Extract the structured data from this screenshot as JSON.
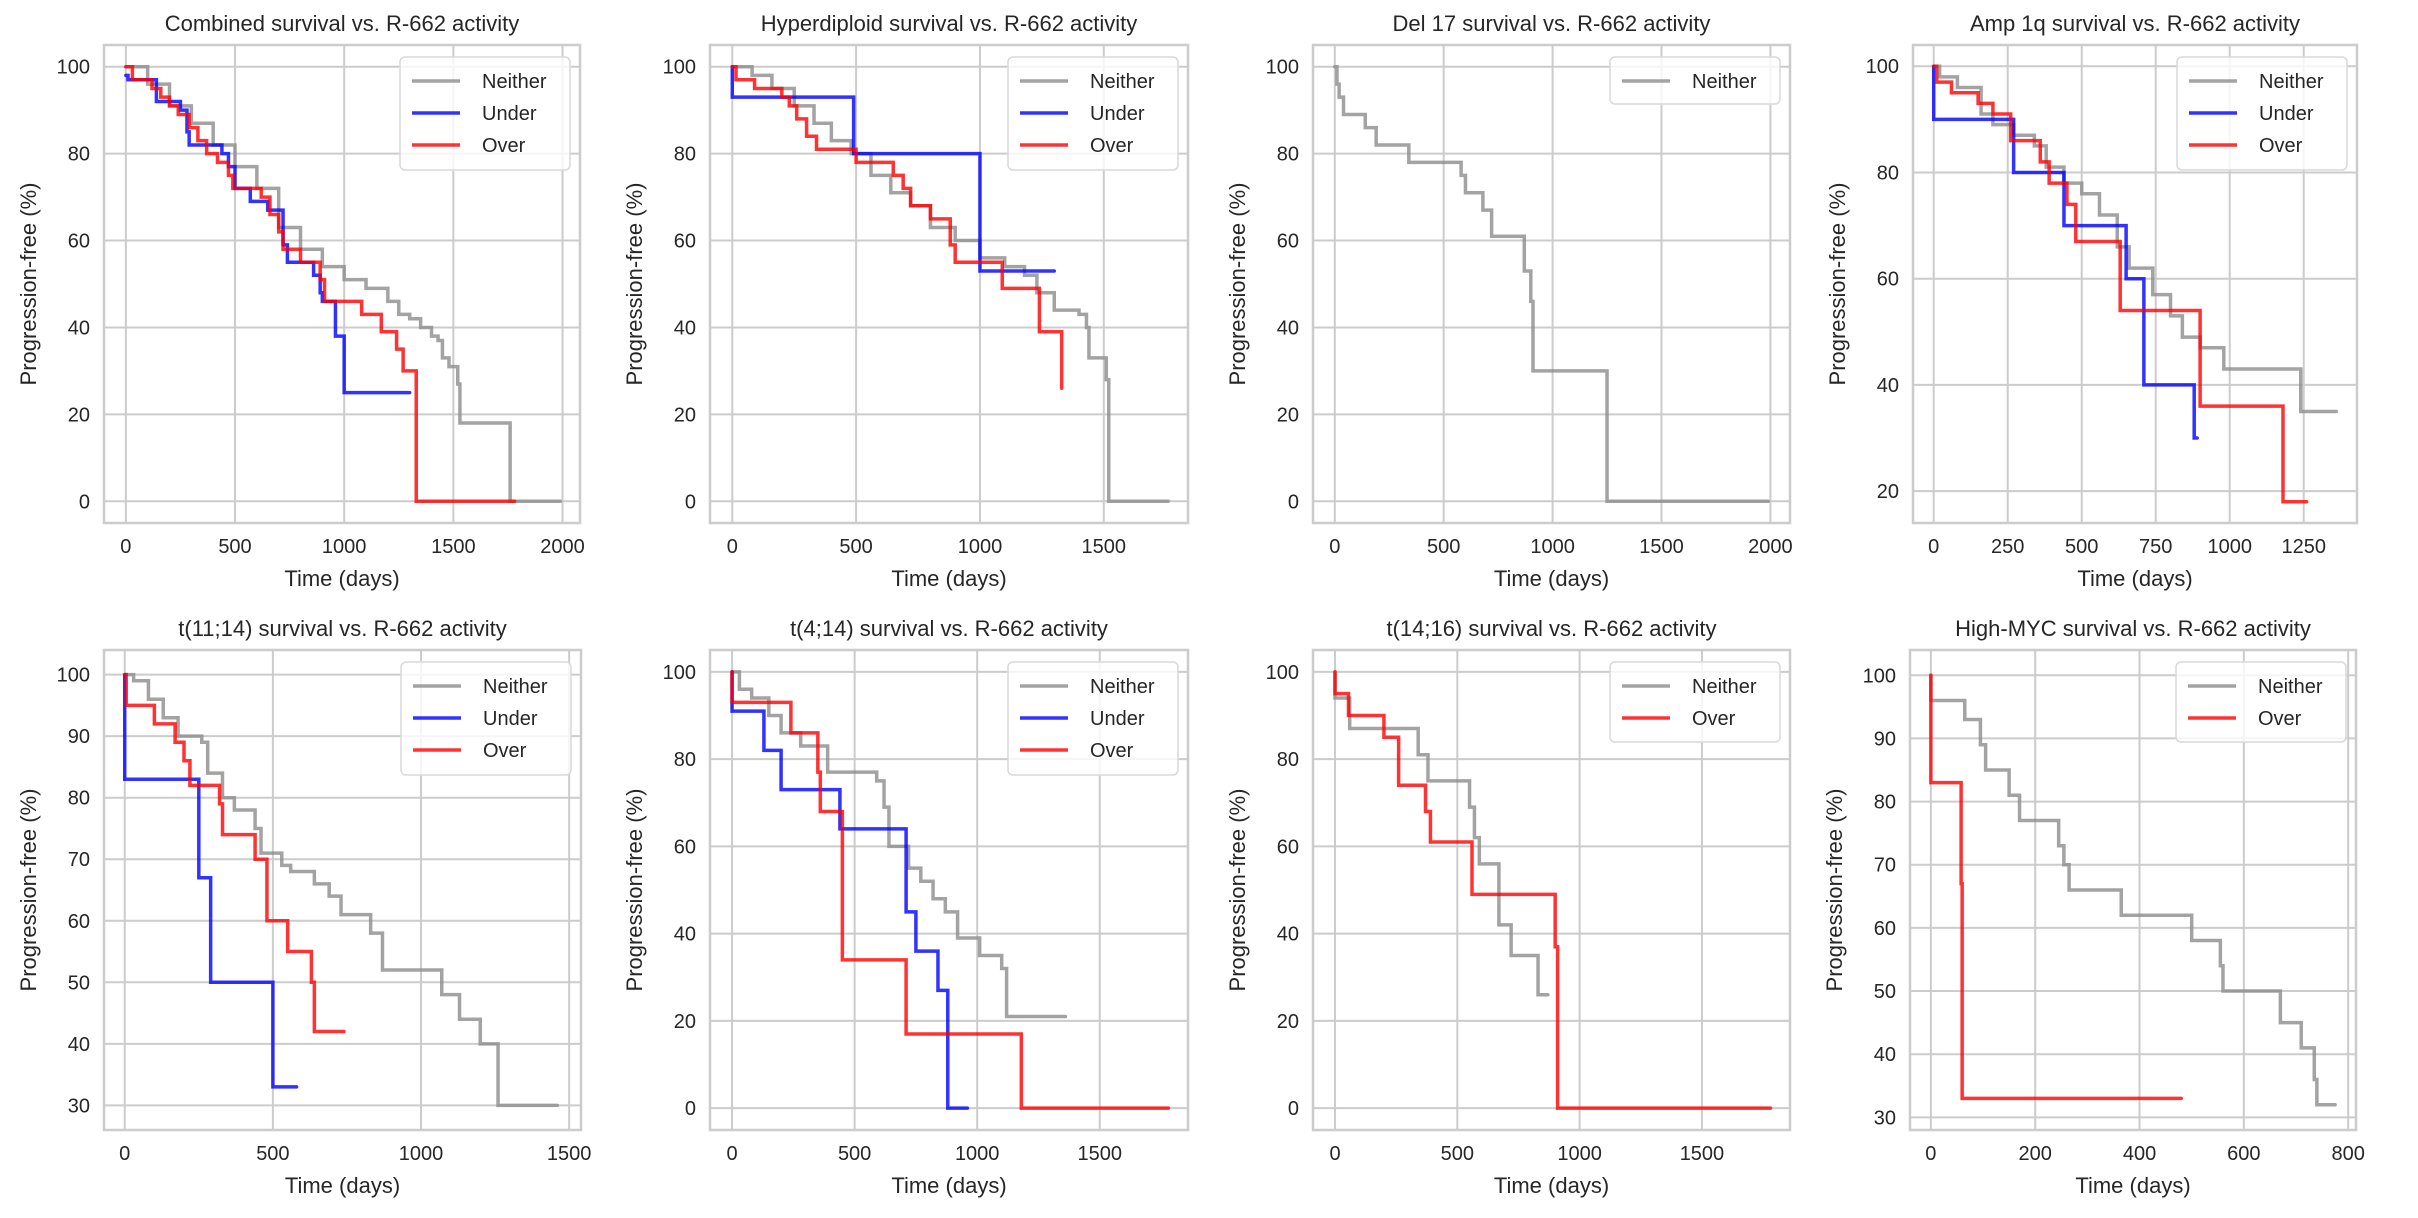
{
  "figure": {
    "ylabel": "Progression-free (%)",
    "xlabel": "Time (days)"
  },
  "series_colors": {
    "Neither": "#8c8c8c",
    "Under": "#0000ff",
    "Over": "#ff0000"
  },
  "chart_data": [
    {
      "type": "line",
      "title": "Combined survival vs. R-662 activity",
      "xlabel": "Time (days)",
      "ylabel": "Progression-free (%)",
      "xlim": [
        -100,
        2080
      ],
      "ylim": [
        -5,
        105
      ],
      "xticks": [
        0,
        500,
        1000,
        1500,
        2000
      ],
      "yticks": [
        0,
        20,
        40,
        60,
        80,
        100
      ],
      "grid": true,
      "legend": "top-right",
      "series": [
        {
          "name": "Neither",
          "x": [
            0,
            100,
            200,
            300,
            400,
            500,
            600,
            700,
            800,
            900,
            1000,
            1100,
            1200,
            1250,
            1300,
            1350,
            1400,
            1430,
            1450,
            1480,
            1510,
            1520,
            1530,
            1760,
            1760,
            1990
          ],
          "y": [
            100,
            96,
            91,
            87,
            82,
            77,
            72,
            63,
            58,
            54,
            51,
            49,
            46,
            43,
            42,
            40,
            38,
            37,
            33,
            31,
            31,
            27,
            18,
            18,
            0,
            0
          ]
        },
        {
          "name": "Under",
          "x": [
            0,
            10,
            130,
            140,
            250,
            280,
            290,
            440,
            470,
            500,
            570,
            650,
            720,
            740,
            800,
            860,
            890,
            900,
            960,
            1000,
            1300
          ],
          "y": [
            98,
            97,
            97,
            92,
            90,
            85,
            82,
            80,
            77,
            72,
            69,
            67,
            59,
            55,
            55,
            52,
            48,
            46,
            38,
            25,
            25
          ]
        },
        {
          "name": "Over",
          "x": [
            0,
            30,
            120,
            160,
            200,
            240,
            290,
            330,
            370,
            420,
            470,
            490,
            560,
            620,
            660,
            700,
            720,
            800,
            860,
            890,
            910,
            1080,
            1170,
            1240,
            1270,
            1330,
            1330,
            1780
          ],
          "y": [
            100,
            97,
            95,
            93,
            91,
            89,
            86,
            83,
            80,
            78,
            75,
            72,
            72,
            70,
            66,
            62,
            58,
            55,
            55,
            51,
            46,
            43,
            39,
            35,
            30,
            30,
            0,
            0
          ]
        }
      ]
    },
    {
      "type": "line",
      "title": "Hyperdiploid survival vs. R-662 activity",
      "xlabel": "Time (days)",
      "ylabel": "Progression-free (%)",
      "xlim": [
        -90,
        1840
      ],
      "ylim": [
        -5,
        105
      ],
      "xticks": [
        0,
        500,
        1000,
        1500
      ],
      "yticks": [
        0,
        20,
        40,
        60,
        80,
        100
      ],
      "grid": true,
      "legend": "top-right",
      "series": [
        {
          "name": "Neither",
          "x": [
            0,
            80,
            160,
            250,
            330,
            400,
            480,
            560,
            640,
            720,
            800,
            900,
            1000,
            1100,
            1180,
            1230,
            1300,
            1400,
            1430,
            1440,
            1500,
            1510,
            1520,
            1760
          ],
          "y": [
            100,
            98,
            95,
            91,
            87,
            83,
            80,
            75,
            71,
            68,
            63,
            60,
            56,
            54,
            52,
            48,
            44,
            43,
            40,
            33,
            33,
            28,
            0,
            0
          ]
        },
        {
          "name": "Under",
          "x": [
            0,
            0,
            490,
            490,
            1000,
            1000,
            1300
          ],
          "y": [
            100,
            93,
            93,
            80,
            80,
            53,
            53
          ]
        },
        {
          "name": "Over",
          "x": [
            0,
            15,
            90,
            200,
            230,
            260,
            300,
            340,
            500,
            650,
            690,
            720,
            800,
            880,
            900,
            1090,
            1240,
            1330
          ],
          "y": [
            100,
            97,
            95,
            93,
            91,
            88,
            84,
            81,
            78,
            75,
            72,
            68,
            65,
            59,
            55,
            49,
            39,
            26
          ]
        }
      ]
    },
    {
      "type": "line",
      "title": "Del 17 survival vs. R-662 activity",
      "xlabel": "Time (days)",
      "ylabel": "Progression-free (%)",
      "xlim": [
        -100,
        2090
      ],
      "ylim": [
        -5,
        105
      ],
      "xticks": [
        0,
        500,
        1000,
        1500,
        2000
      ],
      "yticks": [
        0,
        20,
        40,
        60,
        80,
        100
      ],
      "grid": true,
      "legend": "top-right",
      "series": [
        {
          "name": "Neither",
          "x": [
            0,
            10,
            20,
            40,
            140,
            190,
            340,
            580,
            600,
            680,
            720,
            870,
            900,
            910,
            1250,
            1990
          ],
          "y": [
            100,
            96,
            93,
            89,
            86,
            82,
            78,
            75,
            71,
            67,
            61,
            53,
            46,
            30,
            0,
            0
          ]
        }
      ]
    },
    {
      "type": "line",
      "title": "Amp 1q survival vs. R-662 activity",
      "xlabel": "Time (days)",
      "ylabel": "Progression-free (%)",
      "xlim": [
        -70,
        1430
      ],
      "ylim": [
        14,
        104
      ],
      "xticks": [
        0,
        250,
        500,
        750,
        1000,
        1250
      ],
      "yticks": [
        20,
        40,
        60,
        80,
        100
      ],
      "grid": true,
      "legend": "top-right",
      "series": [
        {
          "name": "Neither",
          "x": [
            0,
            20,
            80,
            160,
            200,
            270,
            340,
            380,
            440,
            500,
            560,
            620,
            660,
            700,
            740,
            800,
            840,
            900,
            980,
            1240,
            1360
          ],
          "y": [
            100,
            98,
            96,
            91,
            89,
            87,
            85,
            81,
            78,
            76,
            72,
            66,
            62,
            62,
            57,
            53,
            49,
            47,
            43,
            35,
            35
          ]
        },
        {
          "name": "Under",
          "x": [
            0,
            0,
            270,
            270,
            440,
            440,
            650,
            650,
            710,
            710,
            880,
            880,
            890
          ],
          "y": [
            100,
            90,
            90,
            80,
            80,
            70,
            70,
            60,
            60,
            40,
            40,
            30,
            30
          ]
        },
        {
          "name": "Over",
          "x": [
            0,
            10,
            60,
            150,
            200,
            260,
            360,
            390,
            450,
            480,
            630,
            900,
            1180,
            1260
          ],
          "y": [
            100,
            97,
            95,
            93,
            91,
            86,
            82,
            78,
            74,
            67,
            54,
            36,
            18,
            18
          ]
        }
      ]
    },
    {
      "type": "line",
      "title": "t(11;14) survival vs. R-662 activity",
      "xlabel": "Time (days)",
      "ylabel": "Progression-free (%)",
      "xlim": [
        -70,
        1540
      ],
      "ylim": [
        26,
        104
      ],
      "xticks": [
        0,
        500,
        1000,
        1500
      ],
      "yticks": [
        30,
        40,
        50,
        60,
        70,
        80,
        90,
        100
      ],
      "grid": true,
      "legend": "top-right",
      "series": [
        {
          "name": "Neither",
          "x": [
            0,
            30,
            80,
            130,
            180,
            260,
            280,
            330,
            370,
            440,
            460,
            530,
            560,
            640,
            690,
            730,
            830,
            870,
            1070,
            1130,
            1200,
            1260,
            1460
          ],
          "y": [
            100,
            99,
            96,
            93,
            90,
            89,
            84,
            80,
            78,
            75,
            71,
            69,
            68,
            66,
            64,
            61,
            58,
            52,
            48,
            44,
            40,
            30,
            30
          ]
        },
        {
          "name": "Under",
          "x": [
            0,
            0,
            250,
            250,
            290,
            290,
            500,
            500,
            580
          ],
          "y": [
            100,
            83,
            83,
            67,
            67,
            50,
            50,
            33,
            33
          ]
        },
        {
          "name": "Over",
          "x": [
            0,
            5,
            100,
            170,
            200,
            220,
            320,
            330,
            440,
            480,
            550,
            630,
            640,
            740
          ],
          "y": [
            100,
            95,
            92,
            89,
            86,
            82,
            79,
            74,
            70,
            60,
            55,
            50,
            42,
            42
          ]
        }
      ]
    },
    {
      "type": "line",
      "title": "t(4;14) survival vs. R-662 activity",
      "xlabel": "Time (days)",
      "ylabel": "Progression-free (%)",
      "xlim": [
        -90,
        1860
      ],
      "ylim": [
        -5,
        105
      ],
      "xticks": [
        0,
        500,
        1000,
        1500
      ],
      "yticks": [
        0,
        20,
        40,
        60,
        80,
        100
      ],
      "grid": true,
      "legend": "top-right",
      "series": [
        {
          "name": "Neither",
          "x": [
            0,
            30,
            80,
            150,
            200,
            280,
            390,
            590,
            620,
            640,
            720,
            770,
            820,
            870,
            920,
            1010,
            1100,
            1120,
            1360
          ],
          "y": [
            100,
            96,
            94,
            90,
            86,
            83,
            77,
            75,
            69,
            60,
            55,
            52,
            48,
            45,
            39,
            35,
            32,
            21,
            21
          ]
        },
        {
          "name": "Under",
          "x": [
            0,
            0,
            130,
            130,
            200,
            200,
            440,
            440,
            710,
            710,
            750,
            750,
            840,
            840,
            880,
            880,
            960
          ],
          "y": [
            100,
            91,
            91,
            82,
            82,
            73,
            73,
            64,
            64,
            45,
            45,
            36,
            36,
            27,
            27,
            0,
            0
          ]
        },
        {
          "name": "Over",
          "x": [
            0,
            0,
            240,
            240,
            350,
            360,
            440,
            450,
            710,
            1180,
            1180,
            1780
          ],
          "y": [
            100,
            93,
            93,
            86,
            77,
            68,
            68,
            34,
            17,
            17,
            0,
            0
          ]
        }
      ]
    },
    {
      "type": "line",
      "title": "t(14;16) survival vs. R-662 activity",
      "xlabel": "Time (days)",
      "ylabel": "Progression-free (%)",
      "xlim": [
        -90,
        1860
      ],
      "ylim": [
        -5,
        105
      ],
      "xticks": [
        0,
        500,
        1000,
        1500
      ],
      "yticks": [
        0,
        20,
        40,
        60,
        80,
        100
      ],
      "grid": true,
      "legend": "top-right",
      "series": [
        {
          "name": "Neither",
          "x": [
            0,
            0,
            60,
            340,
            380,
            550,
            570,
            590,
            670,
            720,
            830,
            870
          ],
          "y": [
            100,
            94,
            87,
            81,
            75,
            69,
            62,
            56,
            42,
            35,
            26,
            26
          ]
        },
        {
          "name": "Over",
          "x": [
            0,
            0,
            55,
            200,
            260,
            370,
            390,
            560,
            900,
            910,
            910,
            1780
          ],
          "y": [
            100,
            95,
            90,
            85,
            74,
            68,
            61,
            49,
            37,
            37,
            0,
            0
          ]
        }
      ]
    },
    {
      "type": "line",
      "title": "High-MYC survival vs. R-662 activity",
      "xlabel": "Time (days)",
      "ylabel": "Progression-free (%)",
      "xlim": [
        -40,
        815
      ],
      "ylim": [
        28,
        104
      ],
      "xticks": [
        0,
        200,
        400,
        600,
        800
      ],
      "yticks": [
        30,
        40,
        50,
        60,
        70,
        80,
        90,
        100
      ],
      "grid": true,
      "legend": "top-right",
      "series": [
        {
          "name": "Neither",
          "x": [
            0,
            0,
            65,
            95,
            105,
            150,
            170,
            245,
            255,
            265,
            365,
            500,
            555,
            560,
            670,
            710,
            735,
            740,
            775
          ],
          "y": [
            100,
            96,
            93,
            89,
            85,
            81,
            77,
            73,
            70,
            66,
            62,
            58,
            54,
            50,
            45,
            41,
            36,
            32,
            32
          ]
        },
        {
          "name": "Over",
          "x": [
            0,
            0,
            58,
            58,
            60,
            60,
            480
          ],
          "y": [
            100,
            83,
            83,
            67,
            67,
            33,
            33
          ]
        }
      ]
    }
  ]
}
